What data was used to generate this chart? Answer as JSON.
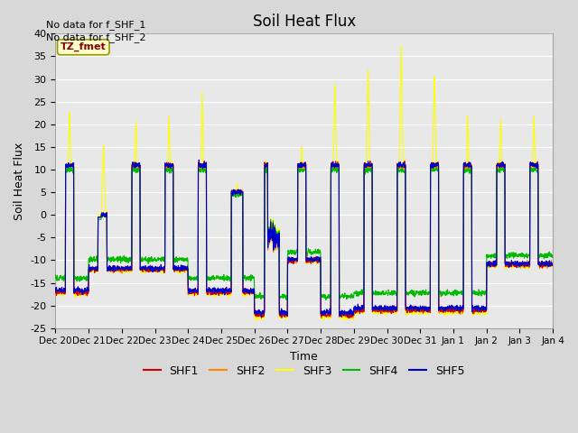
{
  "title": "Soil Heat Flux",
  "ylabel": "Soil Heat Flux",
  "xlabel": "Time",
  "ylim": [
    -25,
    40
  ],
  "no_data_text_1": "No data for f_SHF_1",
  "no_data_text_2": "No data for f_SHF_2",
  "tz_label": "TZ_fmet",
  "series_colors": {
    "SHF1": "#cc0000",
    "SHF2": "#ff8800",
    "SHF3": "#ffff00",
    "SHF4": "#00bb00",
    "SHF5": "#0000cc"
  },
  "background_color": "#d8d8d8",
  "plot_bg_color": "#e8e8e8",
  "grid_color": "#ffffff",
  "xtick_labels": [
    "Dec 20",
    "Dec 21",
    "Dec 22",
    "Dec 23",
    "Dec 24",
    "Dec 25",
    "Dec 26",
    "Dec 27",
    "Dec 28",
    "Dec 29",
    "Dec 30",
    "Dec 31",
    "Jan 1",
    "Jan 2",
    "Jan 3",
    "Jan 4"
  ],
  "ytick_values": [
    -25,
    -20,
    -15,
    -10,
    -5,
    0,
    5,
    10,
    15,
    20,
    25,
    30,
    35,
    40
  ],
  "day_segments": [
    {
      "day": 0,
      "day_val_base": 11,
      "night_val": -17,
      "shf3_peak": 23,
      "day_start": 0.3,
      "day_end": 0.55
    },
    {
      "day": 1,
      "day_val_base": 0,
      "night_val": -12,
      "shf3_peak": 16,
      "day_start": 0.35,
      "day_end": 0.55
    },
    {
      "day": 2,
      "day_val_base": 11,
      "night_val": -12,
      "shf3_peak": 21,
      "day_start": 0.3,
      "day_end": 0.55
    },
    {
      "day": 3,
      "day_val_base": 11,
      "night_val": -12,
      "shf3_peak": 22,
      "day_start": 0.3,
      "day_end": 0.55
    },
    {
      "day": 4,
      "day_val_base": 11,
      "night_val": -17,
      "shf3_peak": 27,
      "day_start": 0.3,
      "day_end": 0.55
    },
    {
      "day": 5,
      "day_val_base": 5,
      "night_val": -17,
      "shf3_peak": 7,
      "day_start": 0.3,
      "day_end": 0.65
    },
    {
      "day": 6,
      "day_val_base": 11,
      "night_val": -22,
      "shf3_peak": 15,
      "day_start": 0.3,
      "day_end": 0.55
    },
    {
      "day": 7,
      "day_val_base": 11,
      "night_val": -10,
      "shf3_peak": 15,
      "day_start": 0.3,
      "day_end": 0.55
    },
    {
      "day": 8,
      "day_val_base": 11,
      "night_val": -22,
      "shf3_peak": 29,
      "day_start": 0.3,
      "day_end": 0.55
    },
    {
      "day": 9,
      "day_val_base": 11,
      "night_val": -21,
      "shf3_peak": 33,
      "day_start": 0.3,
      "day_end": 0.55
    },
    {
      "day": 10,
      "day_val_base": 11,
      "night_val": -21,
      "shf3_peak": 38,
      "day_start": 0.3,
      "day_end": 0.55
    },
    {
      "day": 11,
      "day_val_base": 11,
      "night_val": -21,
      "shf3_peak": 31,
      "day_start": 0.3,
      "day_end": 0.55
    },
    {
      "day": 12,
      "day_val_base": 11,
      "night_val": -21,
      "shf3_peak": 22,
      "day_start": 0.3,
      "day_end": 0.55
    },
    {
      "day": 13,
      "day_val_base": 11,
      "night_val": -11,
      "shf3_peak": 22,
      "day_start": 0.3,
      "day_end": 0.55
    },
    {
      "day": 14,
      "day_val_base": 11,
      "night_val": -11,
      "shf3_peak": 22,
      "day_start": 0.3,
      "day_end": 0.55
    }
  ]
}
